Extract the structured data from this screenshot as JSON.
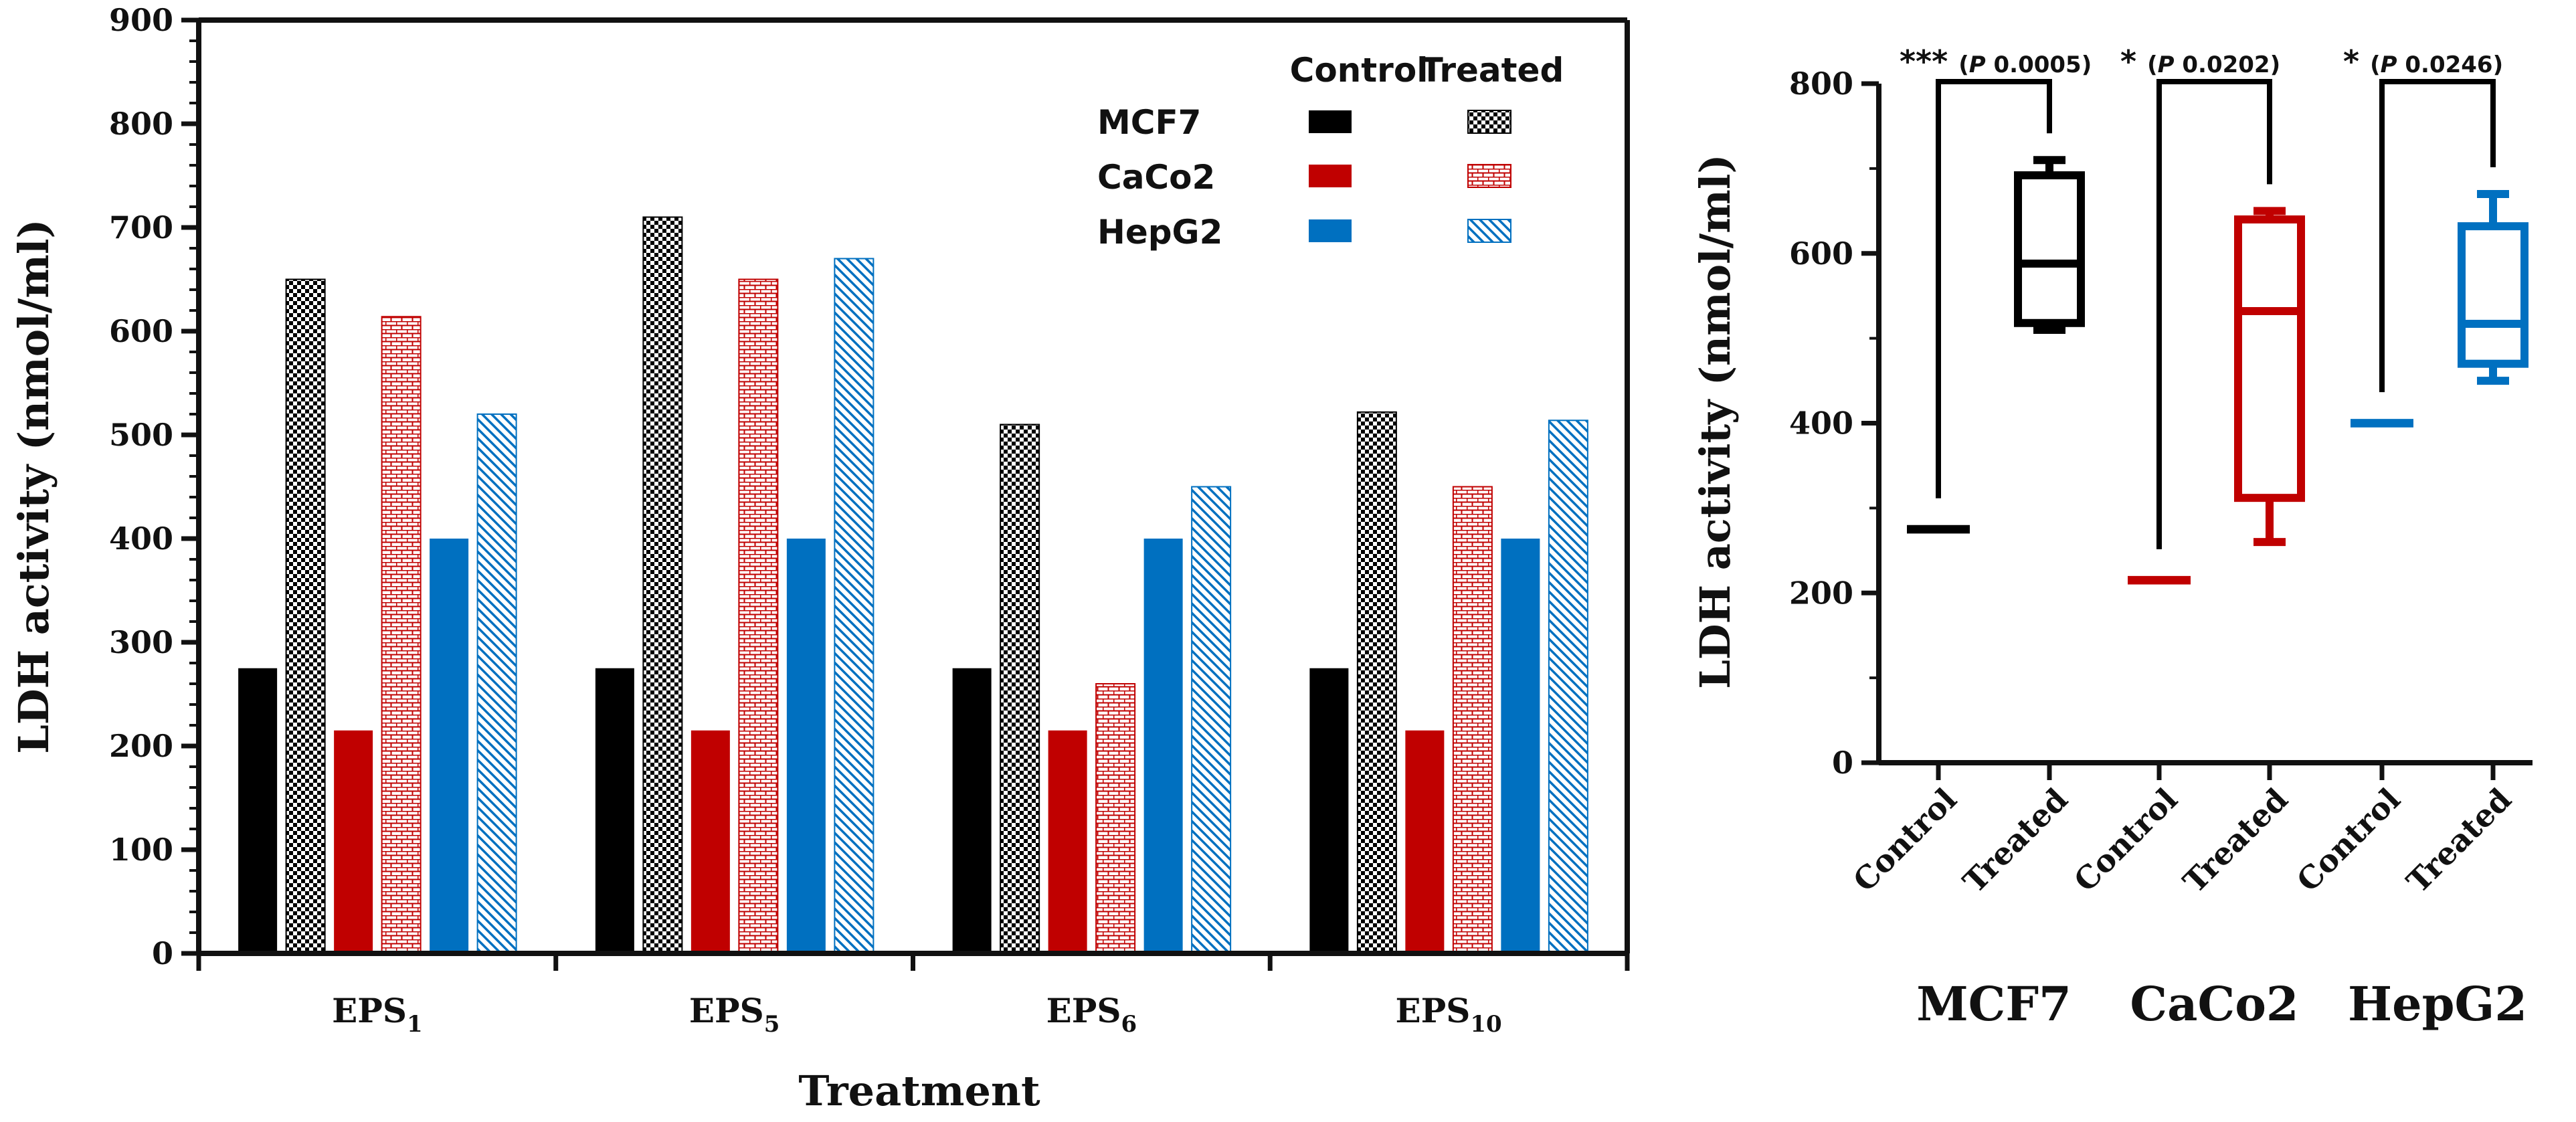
{
  "chart_data": [
    {
      "type": "bar",
      "title": "",
      "xlabel": "Treatment",
      "ylabel": "LDH activity (nmol/ml)",
      "ylim": [
        0,
        900
      ],
      "yticks": [
        "0",
        "100",
        "200",
        "300",
        "400",
        "500",
        "600",
        "700",
        "800",
        "900"
      ],
      "grid": false,
      "legend_position": "top-right",
      "legend": {
        "col_headers": [
          "Control",
          "Treated"
        ],
        "rows": [
          {
            "name": "MCF7",
            "color": "#000000",
            "pattern": "checker"
          },
          {
            "name": "CaCo2",
            "color": "#c00000",
            "pattern": "brick"
          },
          {
            "name": "HepG2",
            "color": "#0070c0",
            "pattern": "diagonal"
          }
        ]
      },
      "categories": [
        {
          "base": "EPS",
          "sub": "1"
        },
        {
          "base": "EPS",
          "sub": "5"
        },
        {
          "base": "EPS",
          "sub": "6"
        },
        {
          "base": "EPS",
          "sub": "10"
        }
      ],
      "series": [
        {
          "name": "MCF7 Control",
          "color": "#000000",
          "fill": "solid",
          "values": [
            275,
            275,
            275,
            275
          ]
        },
        {
          "name": "MCF7 Treated",
          "color": "#000000",
          "fill": "checker",
          "values": [
            650,
            710,
            510,
            522
          ]
        },
        {
          "name": "CaCo2 Control",
          "color": "#c00000",
          "fill": "solid",
          "values": [
            215,
            215,
            215,
            215
          ]
        },
        {
          "name": "CaCo2 Treated",
          "color": "#c00000",
          "fill": "brick",
          "values": [
            614,
            650,
            260,
            450
          ]
        },
        {
          "name": "HepG2 Control",
          "color": "#0070c0",
          "fill": "solid",
          "values": [
            400,
            400,
            400,
            400
          ]
        },
        {
          "name": "HepG2 Treated",
          "color": "#0070c0",
          "fill": "diagonal",
          "values": [
            520,
            670,
            450,
            514
          ]
        }
      ]
    },
    {
      "type": "box",
      "title": "",
      "ylabel": "LDH activity (nmol/ml)",
      "ylim": [
        0,
        800
      ],
      "yticks": [
        "0",
        "200",
        "400",
        "600",
        "800"
      ],
      "grid": false,
      "groups": [
        {
          "name": "MCF7",
          "color": "#000000",
          "control": {
            "label": "Control",
            "min": 270,
            "q1": 270,
            "median": 275,
            "q3": 280,
            "max": 280
          },
          "treated": {
            "label": "Treated",
            "min": 510,
            "q1": 518,
            "median": 588,
            "q3": 692,
            "max": 710
          },
          "significance": {
            "stars": "***",
            "p_prefix": "(",
            "p_italic": "P",
            "p_value": " 0.0005)"
          }
        },
        {
          "name": "CaCo2",
          "color": "#c00000",
          "control": {
            "label": "Control",
            "min": 210,
            "q1": 210,
            "median": 215,
            "q3": 220,
            "max": 220
          },
          "treated": {
            "label": "Treated",
            "min": 260,
            "q1": 312,
            "median": 532,
            "q3": 640,
            "max": 650
          },
          "significance": {
            "stars": "*",
            "p_prefix": "(",
            "p_italic": "P",
            "p_value": " 0.0202)"
          }
        },
        {
          "name": "HepG2",
          "color": "#0070c0",
          "control": {
            "label": "Control",
            "min": 395,
            "q1": 395,
            "median": 400,
            "q3": 405,
            "max": 405
          },
          "treated": {
            "label": "Treated",
            "min": 450,
            "q1": 470,
            "median": 517,
            "q3": 632,
            "max": 670
          },
          "significance": {
            "stars": "*",
            "p_prefix": "(",
            "p_italic": "P",
            "p_value": " 0.0246)"
          }
        }
      ]
    }
  ]
}
